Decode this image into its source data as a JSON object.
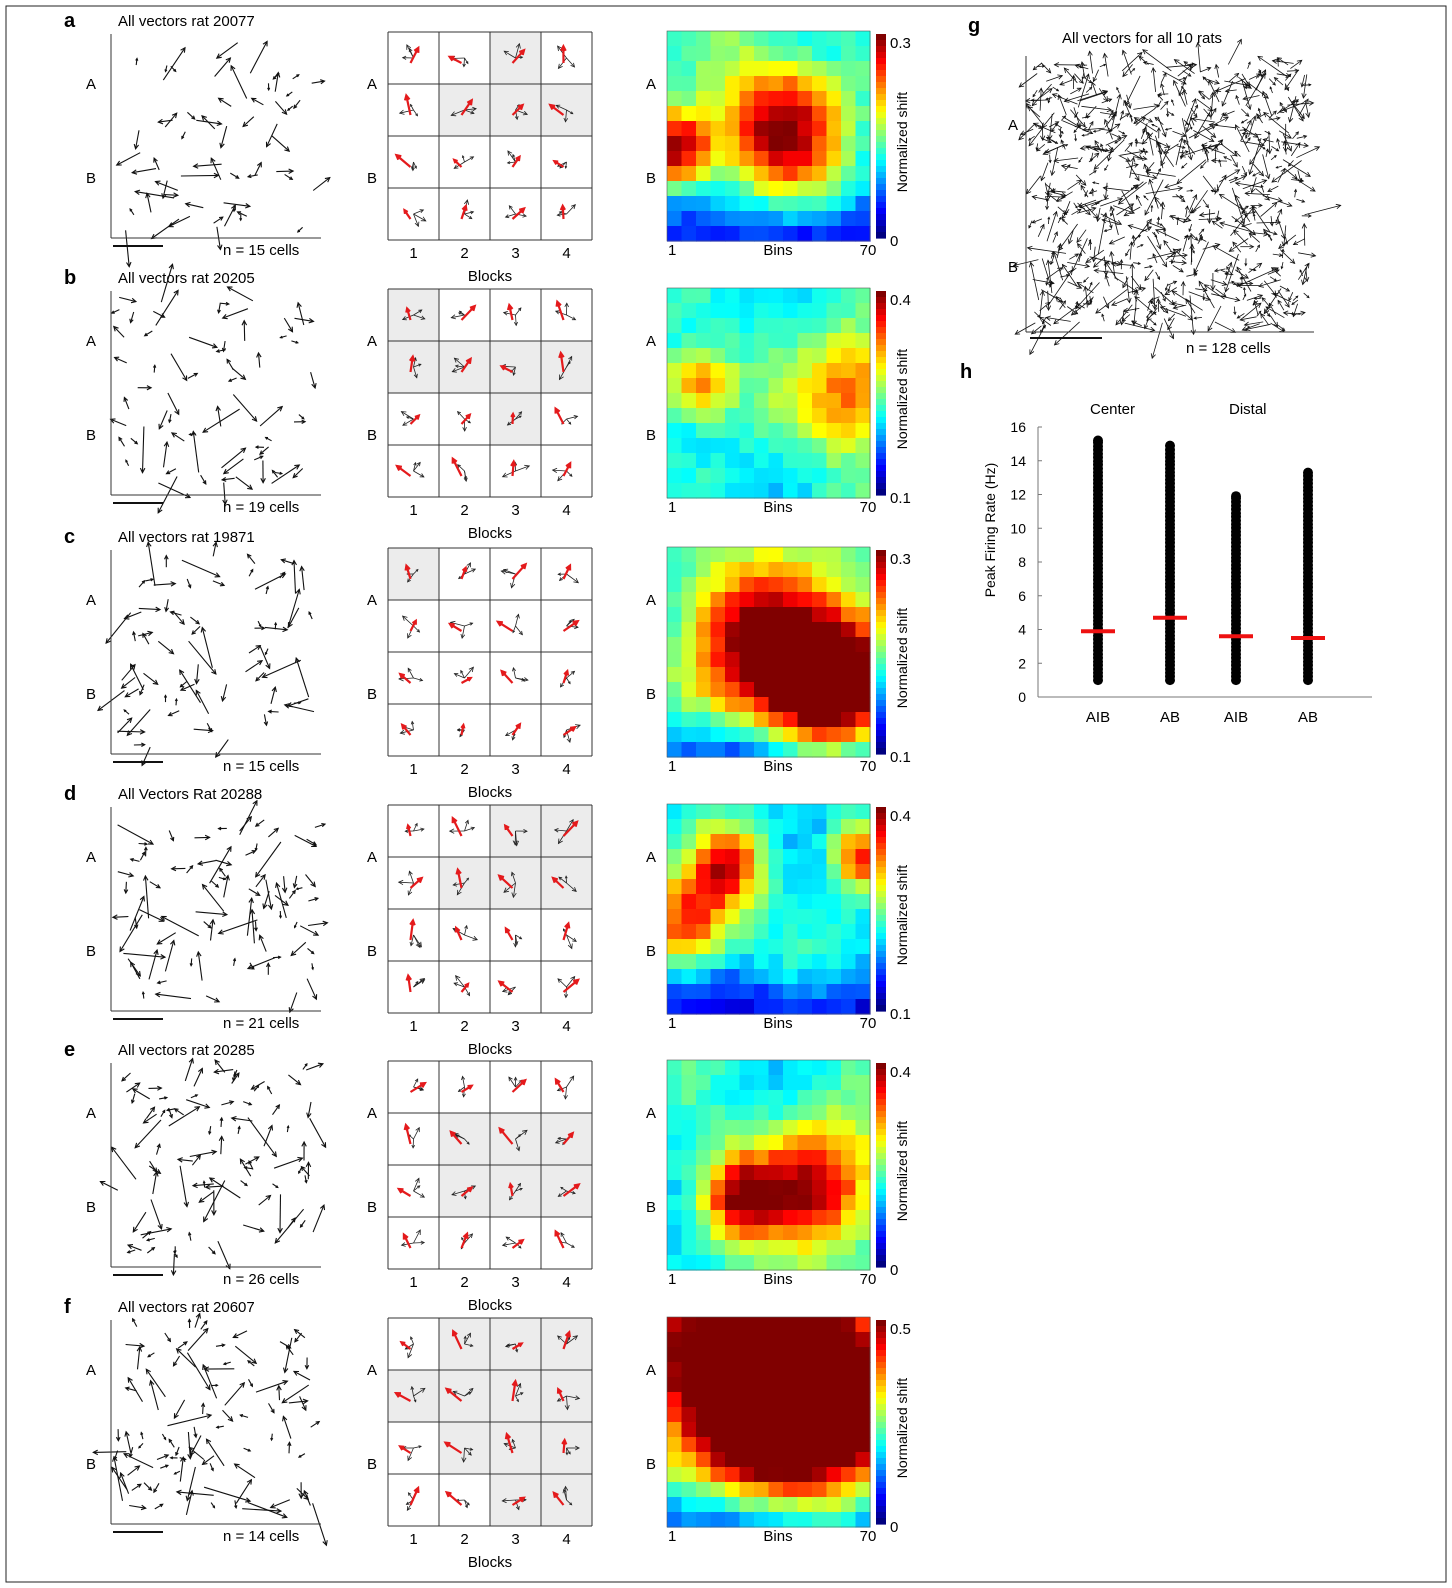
{
  "rats": [
    {
      "letter": "a",
      "title": "All vectors rat 20077",
      "n_label": "n = 15 cells",
      "block_labels": [
        "1",
        "2",
        "3",
        "4"
      ],
      "blocks_label": "Blocks",
      "cbar_max": "0.3",
      "cbar_min": "0",
      "cbar_label": "Normalized shift",
      "bins_start": "1",
      "bins_label": "Bins",
      "bins_end": "70",
      "shaded": [
        [
          0,
          2
        ],
        [
          1,
          1
        ],
        [
          1,
          2
        ],
        [
          1,
          3
        ]
      ],
      "rows": 4,
      "hot": [
        [
          0.55,
          0.45,
          0.22
        ],
        [
          0.05,
          0.55,
          0.12
        ]
      ],
      "hot_level": 0.6,
      "bottom_cold": true
    },
    {
      "letter": "b",
      "title": "All vectors rat 20205",
      "n_label": "n = 19 cells",
      "block_labels": [
        "1",
        "2",
        "3",
        "4"
      ],
      "blocks_label": "Blocks",
      "cbar_max": "0.4",
      "cbar_min": "0.1",
      "cbar_label": "Normalized shift",
      "bins_start": "1",
      "bins_label": "Bins",
      "bins_end": "70",
      "shaded": [
        [
          0,
          0
        ],
        [
          1,
          0
        ],
        [
          1,
          1
        ],
        [
          1,
          2
        ],
        [
          1,
          3
        ],
        [
          2,
          2
        ]
      ],
      "rows": 4,
      "hot": [
        [
          0.92,
          0.5,
          0.2
        ],
        [
          0.15,
          0.45,
          0.12
        ]
      ],
      "hot_level": 0.45,
      "bottom_cold": false
    },
    {
      "letter": "c",
      "title": "All vectors rat 19871",
      "n_label": "n = 15 cells",
      "block_labels": [
        "1",
        "2",
        "3",
        "4"
      ],
      "blocks_label": "Blocks",
      "cbar_max": "0.3",
      "cbar_min": "0.1",
      "cbar_label": "Normalized shift",
      "bins_start": "1",
      "bins_label": "Bins",
      "bins_end": "70",
      "shaded": [
        [
          0,
          0
        ]
      ],
      "rows": 4,
      "hot": [
        [
          0.55,
          0.5,
          0.3
        ],
        [
          0.85,
          0.65,
          0.2
        ]
      ],
      "hot_level": 0.7,
      "bottom_cold": true
    },
    {
      "letter": "d",
      "title": "All Vectors Rat 20288",
      "n_label": "n = 21 cells",
      "block_labels": [
        "1",
        "2",
        "3",
        "4"
      ],
      "blocks_label": "Blocks",
      "cbar_max": "0.4",
      "cbar_min": "0.1",
      "cbar_label": "Normalized shift",
      "bins_start": "1",
      "bins_label": "Bins",
      "bins_end": "70",
      "shaded": [
        [
          0,
          2
        ],
        [
          0,
          3
        ],
        [
          1,
          1
        ],
        [
          1,
          2
        ],
        [
          1,
          3
        ]
      ],
      "rows": 4,
      "hot": [
        [
          0.1,
          0.55,
          0.16
        ],
        [
          0.3,
          0.3,
          0.12
        ],
        [
          0.95,
          0.25,
          0.1
        ]
      ],
      "hot_level": 0.45,
      "bottom_cold": true
    },
    {
      "letter": "e",
      "title": "All vectors rat 20285",
      "n_label": "n = 26 cells",
      "block_labels": [
        "1",
        "2",
        "3",
        "4"
      ],
      "blocks_label": "Blocks",
      "cbar_max": "0.4",
      "cbar_min": "0",
      "cbar_label": "Normalized shift",
      "bins_start": "1",
      "bins_label": "Bins",
      "bins_end": "70",
      "shaded": [
        [
          1,
          1
        ],
        [
          1,
          2
        ],
        [
          1,
          3
        ],
        [
          2,
          1
        ],
        [
          2,
          2
        ],
        [
          2,
          3
        ]
      ],
      "rows": 4,
      "hot": [
        [
          0.75,
          0.6,
          0.22
        ],
        [
          0.35,
          0.65,
          0.14
        ]
      ],
      "hot_level": 0.55,
      "bottom_cold": false
    },
    {
      "letter": "f",
      "title": "All vectors rat 20607",
      "n_label": "n = 14 cells",
      "block_labels": [
        "1",
        "2",
        "3",
        "4"
      ],
      "blocks_label": "Blocks",
      "cbar_max": "0.5",
      "cbar_min": "0",
      "cbar_label": "Normalized shift",
      "bins_start": "1",
      "bins_label": "Bins",
      "bins_end": "70",
      "shaded": [
        [
          0,
          1
        ],
        [
          0,
          2
        ],
        [
          0,
          3
        ],
        [
          1,
          0
        ],
        [
          1,
          1
        ],
        [
          1,
          2
        ],
        [
          1,
          3
        ],
        [
          2,
          1
        ],
        [
          2,
          2
        ],
        [
          2,
          3
        ],
        [
          3,
          2
        ],
        [
          3,
          3
        ]
      ],
      "rows": 4,
      "hot": [
        [
          0.35,
          0.25,
          0.35
        ],
        [
          0.75,
          0.45,
          0.3
        ]
      ],
      "hot_level": 0.85,
      "bottom_cold": true
    }
  ],
  "region_labels": {
    "a": "A",
    "b": "B"
  },
  "panel_g": {
    "letter": "g",
    "title": "All vectors for all 10 rats",
    "n_label": "n = 128 cells"
  },
  "panel_h": {
    "letter": "h",
    "ylabel": "Peak Firing Rate (Hz)",
    "group_center": "Center",
    "group_distal": "Distal"
  },
  "chart_data": {
    "type": "scatter",
    "title": "",
    "ylabel": "Peak Firing Rate (Hz)",
    "xlabel": "",
    "categories": [
      "AIB",
      "AB",
      "AIB",
      "AB"
    ],
    "groups": [
      "Center",
      "Distal"
    ],
    "ylim": [
      0,
      16
    ],
    "yticks": [
      "0",
      "2",
      "4",
      "6",
      "8",
      "10",
      "12",
      "14",
      "16"
    ],
    "series": [
      {
        "max": 15.2,
        "mean": 3.9
      },
      {
        "max": 14.9,
        "mean": 4.7
      },
      {
        "max": 11.9,
        "mean": 3.6
      },
      {
        "max": 13.3,
        "mean": 3.5
      }
    ],
    "mean_color": "#ee1111",
    "point_color": "#000000"
  },
  "colors": {
    "arrow": "#111111",
    "block_arrow": "#e41a1c",
    "shade": "#ececec",
    "line": "#333333"
  }
}
